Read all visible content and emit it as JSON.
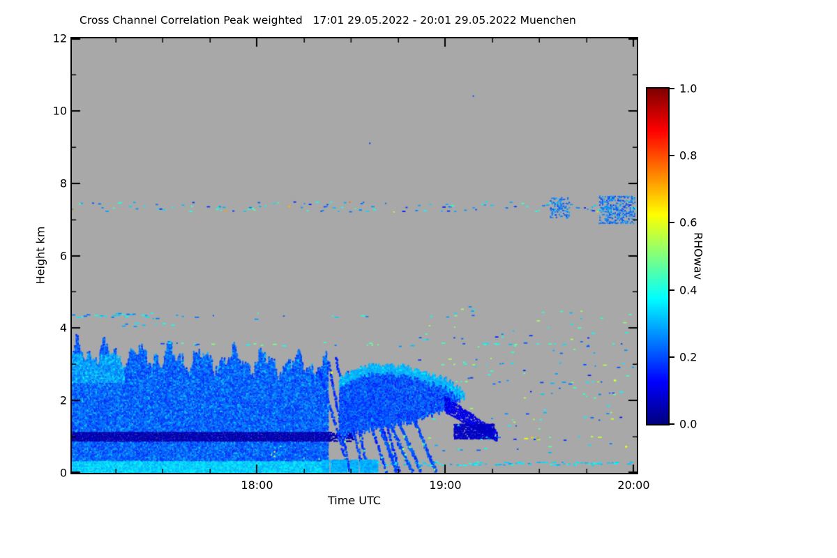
{
  "chart": {
    "title": "Cross Channel Correlation Peak weighted   17:01 29.05.2022 - 20:01 29.05.2022 Muenchen"
  },
  "chart_data": {
    "type": "heatmap",
    "title": "Cross Channel Correlation Peak weighted   17:01 29.05.2022 - 20:01 29.05.2022 Muenchen",
    "xlabel": "Time UTC",
    "ylabel": "Height km",
    "x_range_hours": [
      17.0167,
      20.0167
    ],
    "y_range_km": [
      0,
      12
    ],
    "x_ticks": [
      {
        "value": 18,
        "label": "18:00"
      },
      {
        "value": 19,
        "label": "19:00"
      },
      {
        "value": 20,
        "label": "20:00"
      }
    ],
    "x_minor_step": 0.25,
    "y_ticks": [
      {
        "value": 0,
        "label": "0"
      },
      {
        "value": 2,
        "label": "2"
      },
      {
        "value": 4,
        "label": "4"
      },
      {
        "value": 6,
        "label": "6"
      },
      {
        "value": 8,
        "label": "8"
      },
      {
        "value": 10,
        "label": "10"
      },
      {
        "value": 12,
        "label": "12"
      }
    ],
    "y_minor_step": 1,
    "colorbar": {
      "label": "RHOwav",
      "min": 0.0,
      "max": 1.0,
      "colormap": "jet",
      "ticks": [
        {
          "value": 0.0,
          "label": "0.0"
        },
        {
          "value": 0.2,
          "label": "0.2"
        },
        {
          "value": 0.4,
          "label": "0.4"
        },
        {
          "value": 0.6,
          "label": "0.6"
        },
        {
          "value": 0.8,
          "label": "0.8"
        },
        {
          "value": 1.0,
          "label": "1.0"
        }
      ]
    },
    "no_data_color": "#a8a8a8",
    "frame_color": "#000000",
    "features": {
      "main_cloud": {
        "t0": 17.02,
        "t1": 18.38,
        "top_start": 3.35,
        "top_slope": -0.28,
        "value_base": 0.16,
        "value_noise": 0.1,
        "surface_top": 0.33,
        "surface_value": 0.33,
        "dark_band": {
          "t1": 18.52,
          "h0": 0.88,
          "h1": 1.12,
          "value": 0.03
        }
      },
      "streaks": {
        "count": 7,
        "t_start": 18.33,
        "spacing": 0.048,
        "top": 2.75,
        "len": 0.14,
        "value": 0.18
      },
      "streaks2": {
        "count": 4,
        "t_start": 18.6,
        "spacing": 0.075,
        "top": 1.7,
        "len": 0.13,
        "value": 0.2
      },
      "streak_surface": {
        "t0": 18.35,
        "t1": 18.66,
        "h_top": 0.35,
        "density": 0.8,
        "value": 0.3
      },
      "blob": {
        "t": [
          18.44,
          18.55,
          18.7,
          18.85,
          19.0,
          19.1
        ],
        "top": [
          2.6,
          2.95,
          3.0,
          2.85,
          2.6,
          2.25
        ],
        "bot": [
          1.0,
          1.15,
          1.3,
          1.45,
          1.75,
          2.05
        ],
        "value": 0.15,
        "rim": 0.3
      },
      "tail": {
        "t0": 19.0,
        "t1": 19.28,
        "h_start": 1.9,
        "h_end": 1.0,
        "halfwidth": 0.22,
        "value": 0.1,
        "clump": {
          "t0": 19.05,
          "t1": 19.26,
          "h0": 0.95,
          "h1": 1.35,
          "value": 0.05
        }
      },
      "interference_line": {
        "h": 7.35,
        "density": 0.3,
        "jitter": 0.14,
        "v_lo": 0.15,
        "v_hi": 0.45,
        "hot_prob": 0.08,
        "hot_v": 0.62,
        "patches": [
          {
            "t0": 19.56,
            "t1": 19.66,
            "h0": 7.05,
            "h1": 7.6,
            "density": 0.45,
            "v": 0.18
          },
          {
            "t0": 19.82,
            "t1": 20.01,
            "h0": 6.9,
            "h1": 7.65,
            "density": 0.5,
            "v": 0.18
          }
        ]
      },
      "speckle_rows": [
        {
          "h": 4.35,
          "t0": 17.02,
          "t1": 17.45,
          "density": 0.5,
          "v_lo": 0.2,
          "v_hi": 0.4
        },
        {
          "h": 4.3,
          "t0": 17.45,
          "t1": 18.0,
          "density": 0.12,
          "v_lo": 0.2,
          "v_hi": 0.4
        },
        {
          "h": 4.35,
          "t0": 18.0,
          "t1": 19.2,
          "density": 0.06,
          "v_lo": 0.2,
          "v_hi": 0.45
        },
        {
          "h": 4.1,
          "t0": 17.25,
          "t1": 17.6,
          "density": 0.2,
          "v_lo": 0.2,
          "v_hi": 0.4
        },
        {
          "h": 3.55,
          "t0": 17.5,
          "t1": 19.95,
          "density": 0.1,
          "v_lo": 0.2,
          "v_hi": 0.5
        },
        {
          "h": 3.0,
          "t0": 18.9,
          "t1": 19.95,
          "density": 0.08,
          "v_lo": 0.2,
          "v_hi": 0.55
        },
        {
          "h": 2.5,
          "t0": 19.25,
          "t1": 19.95,
          "density": 0.12,
          "v_lo": 0.2,
          "v_hi": 0.6
        },
        {
          "h": 2.2,
          "t0": 19.3,
          "t1": 19.95,
          "density": 0.1,
          "v_lo": 0.15,
          "v_hi": 0.5
        },
        {
          "h": 1.5,
          "t0": 19.3,
          "t1": 19.9,
          "density": 0.06,
          "v_lo": 0.2,
          "v_hi": 0.6
        },
        {
          "h": 0.25,
          "t0": 18.6,
          "t1": 20.0,
          "density": 0.45,
          "v_lo": 0.28,
          "v_hi": 0.4
        },
        {
          "h": 0.65,
          "t0": 18.85,
          "t1": 19.4,
          "density": 0.12,
          "v_lo": 0.2,
          "v_hi": 0.4
        },
        {
          "h": 0.95,
          "t0": 19.4,
          "t1": 20.0,
          "density": 0.08,
          "v_lo": 0.3,
          "v_hi": 0.7
        },
        {
          "h": 4.0,
          "t0": 19.4,
          "t1": 19.9,
          "density": 0.05,
          "v_lo": 0.2,
          "v_hi": 0.5
        }
      ],
      "scatter": {
        "t0": 18.85,
        "t1": 20.0,
        "h0": 0.5,
        "h1": 4.6,
        "count": 120,
        "v_lo": 0.15,
        "v_hi": 0.55
      },
      "isolated_dots": [
        {
          "t": 19.15,
          "h": 10.4,
          "v": 0.2
        },
        {
          "t": 18.6,
          "h": 9.1,
          "v": 0.18
        }
      ],
      "accent_dots": [
        {
          "t": 19.49,
          "h": 0.95,
          "v": 0.75
        },
        {
          "t": 19.96,
          "h": 0.72,
          "v": 0.62
        },
        {
          "t": 19.78,
          "h": 1.0,
          "v": 0.55
        },
        {
          "t": 19.9,
          "h": 2.55,
          "v": 0.6
        }
      ]
    }
  }
}
